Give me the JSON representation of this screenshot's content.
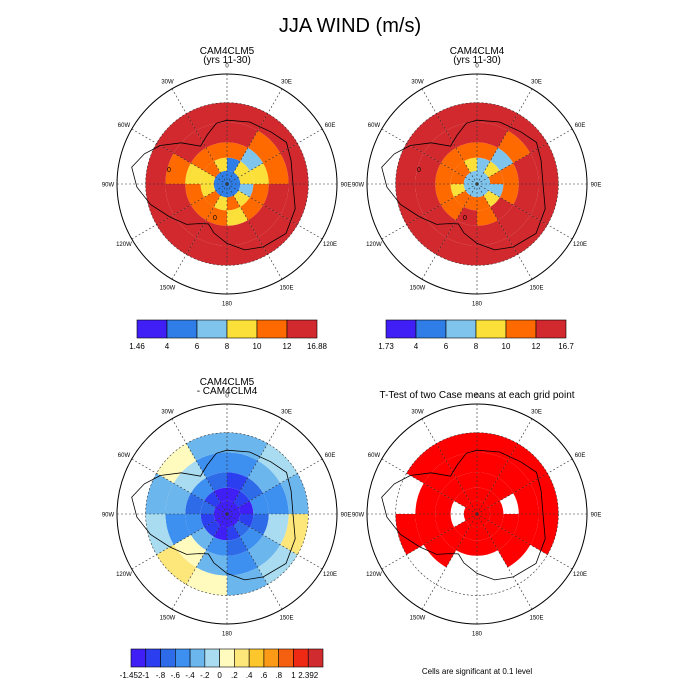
{
  "title": "JJA WIND (m/s)",
  "lon_labels": [
    "0",
    "30E",
    "60E",
    "90E",
    "120E",
    "150E",
    "180",
    "150W",
    "120W",
    "90W",
    "60W",
    "30W"
  ],
  "contour_labels": [
    "0",
    "0"
  ],
  "panels": [
    {
      "title_lines": [
        "CAM4CLM5",
        "(yrs 11-30)"
      ],
      "colorbar_ticks": [
        "1.46",
        "4",
        "6",
        "8",
        "10",
        "12",
        "16.88"
      ],
      "colors": [
        "#3f1ff6",
        "#2f7de6",
        "#7fc4ec",
        "#fce03a",
        "#ff6a00",
        "#d2292e"
      ]
    },
    {
      "title_lines": [
        "CAM4CLM4",
        "(yrs 11-30)"
      ],
      "colorbar_ticks": [
        "1.73",
        "4",
        "6",
        "8",
        "10",
        "12",
        "16.7"
      ],
      "colors": [
        "#3f1ff6",
        "#2f7de6",
        "#7fc4ec",
        "#fce03a",
        "#ff6a00",
        "#d2292e"
      ]
    },
    {
      "title_lines": [
        "CAM4CLM5",
        "- CAM4CLM4"
      ],
      "colorbar_ticks": [
        "-1.452",
        "-1",
        "-.8",
        "-.6",
        "-.4",
        "-.2",
        "0",
        ".2",
        ".4",
        ".6",
        ".8",
        "1",
        "2.392"
      ],
      "colors": [
        "#3f1ff6",
        "#2b3ff0",
        "#2e6be8",
        "#3d8ff0",
        "#6cb6ee",
        "#a9dcf0",
        "#fffbbf",
        "#fde67a",
        "#fcc62c",
        "#fb9a16",
        "#f56010",
        "#ee2a15",
        "#d02b2f"
      ]
    },
    {
      "title_lines": [
        "T-Test of two Case means at each grid point"
      ],
      "note": "Cells are significant at 0.1 level",
      "colors": [
        "#ff0000"
      ]
    }
  ],
  "chart_data": [
    {
      "type": "heatmap",
      "projection": "south-polar-stereographic",
      "title": "CAM4CLM5 (yrs 11-30)",
      "units": "m/s",
      "color_levels": [
        1.46,
        4,
        6,
        8,
        10,
        12,
        16.88
      ],
      "ring_values": [
        [
          4,
          8,
          8,
          6,
          8,
          10,
          8,
          10,
          8,
          8,
          10,
          8
        ],
        [
          10,
          6,
          8,
          10,
          10,
          8,
          10,
          10,
          10,
          8,
          10,
          10
        ],
        [
          12,
          10,
          10,
          12,
          12,
          12,
          12,
          12,
          12,
          10,
          12,
          12
        ],
        [
          14,
          12,
          14,
          14,
          14,
          14,
          14,
          14,
          12,
          12,
          14,
          14
        ]
      ]
    },
    {
      "type": "heatmap",
      "projection": "south-polar-stereographic",
      "title": "CAM4CLM4 (yrs 11-30)",
      "units": "m/s",
      "color_levels": [
        1.73,
        4,
        6,
        8,
        10,
        12,
        16.7
      ],
      "ring_values": [
        [
          6,
          8,
          10,
          6,
          8,
          10,
          10,
          10,
          8,
          10,
          10,
          8
        ],
        [
          10,
          6,
          10,
          10,
          12,
          10,
          12,
          10,
          10,
          10,
          10,
          10
        ],
        [
          12,
          10,
          12,
          14,
          14,
          12,
          12,
          12,
          12,
          12,
          12,
          12
        ],
        [
          14,
          14,
          14,
          14,
          14,
          14,
          14,
          14,
          14,
          12,
          14,
          14
        ]
      ]
    },
    {
      "type": "heatmap",
      "projection": "south-polar-stereographic",
      "title": "CAM4CLM5 - CAM4CLM4",
      "units": "m/s",
      "color_levels": [
        -1.452,
        -1,
        -0.8,
        -0.6,
        -0.4,
        -0.2,
        0,
        0.2,
        0.4,
        0.6,
        0.8,
        1,
        2.392
      ],
      "ring_values": [
        [
          -1.1,
          -0.9,
          -1.1,
          -0.9,
          -0.7,
          -0.9,
          -1.1,
          -0.9,
          -0.9,
          -0.7,
          -0.9,
          -1.1
        ],
        [
          -0.9,
          -0.7,
          -0.5,
          -0.7,
          -0.5,
          -0.7,
          -0.5,
          -0.3,
          -0.5,
          -0.7,
          -0.5,
          -0.7
        ],
        [
          -0.5,
          -0.3,
          -0.5,
          -0.1,
          -0.3,
          -0.5,
          -0.3,
          0.1,
          -0.5,
          -0.3,
          -0.1,
          -0.5
        ],
        [
          -0.3,
          -0.1,
          -0.3,
          0.3,
          -0.1,
          -0.3,
          0.1,
          0.3,
          -0.1,
          -0.3,
          0.1,
          -0.3
        ]
      ]
    },
    {
      "type": "heatmap",
      "projection": "south-polar-stereographic",
      "title": "T-Test of two Case means at each grid point",
      "significance_level": 0.1,
      "ring_values": [
        [
          1,
          1,
          1,
          1,
          1,
          1,
          1,
          1,
          0,
          0,
          1,
          1
        ],
        [
          1,
          1,
          0,
          1,
          1,
          1,
          1,
          1,
          1,
          1,
          1,
          1
        ],
        [
          1,
          1,
          1,
          1,
          1,
          0,
          0,
          1,
          1,
          1,
          1,
          1
        ],
        [
          1,
          1,
          1,
          1,
          0,
          0,
          0,
          0,
          1,
          0,
          1,
          1
        ]
      ]
    }
  ]
}
